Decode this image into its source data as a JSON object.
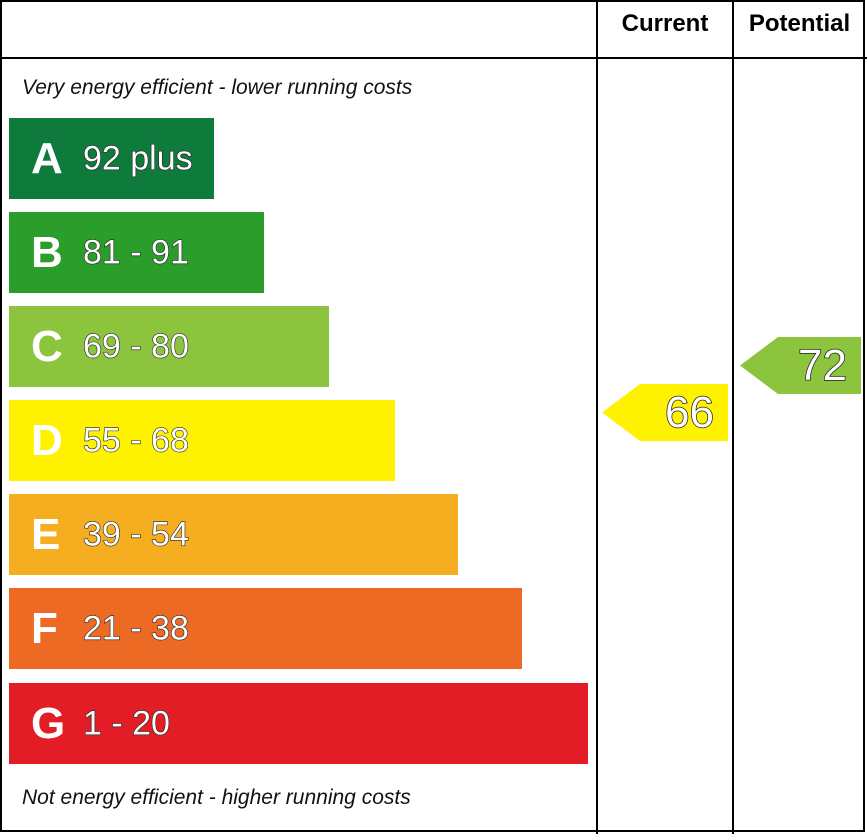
{
  "header": {
    "current_label": "Current",
    "potential_label": "Potential"
  },
  "captions": {
    "top": "Very energy efficient - lower running costs",
    "bottom": "Not energy efficient - higher running costs"
  },
  "chart_data": {
    "type": "bar",
    "bands": [
      {
        "letter": "A",
        "range": "92 plus",
        "color": "#0e7a3b"
      },
      {
        "letter": "B",
        "range": "81 - 91",
        "color": "#2a9d2a"
      },
      {
        "letter": "C",
        "range": "69 - 80",
        "color": "#8cc43d"
      },
      {
        "letter": "D",
        "range": "55 - 68",
        "color": "#fff200"
      },
      {
        "letter": "E",
        "range": "39 - 54",
        "color": "#f5ae1f"
      },
      {
        "letter": "F",
        "range": "21 - 38",
        "color": "#ec6a24"
      },
      {
        "letter": "G",
        "range": "1 - 20",
        "color": "#e31d25"
      }
    ],
    "current": {
      "value": "66",
      "band": "D",
      "color": "#fff200"
    },
    "potential": {
      "value": "72",
      "band": "C",
      "color": "#8cc43d"
    }
  }
}
